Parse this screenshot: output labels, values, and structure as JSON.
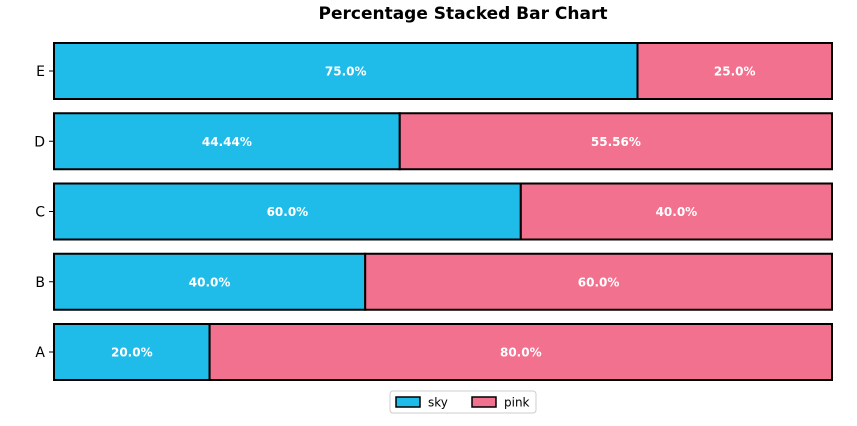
{
  "chart_data": {
    "type": "bar",
    "orientation": "horizontal",
    "stacked": "percent",
    "title": "Percentage Stacked Bar Chart",
    "xlabel": "",
    "ylabel": "",
    "categories": [
      "A",
      "B",
      "C",
      "D",
      "E"
    ],
    "series": [
      {
        "name": "sky",
        "color": "#1fbcea",
        "values": [
          20.0,
          40.0,
          60.0,
          44.44,
          75.0
        ],
        "labels": [
          "20.0%",
          "40.0%",
          "60.0%",
          "44.44%",
          "75.0%"
        ]
      },
      {
        "name": "pink",
        "color": "#f2718e",
        "values": [
          80.0,
          60.0,
          40.0,
          55.56,
          25.0
        ],
        "labels": [
          "80.0%",
          "60.0%",
          "40.0%",
          "55.56%",
          "25.0%"
        ]
      }
    ],
    "xlim": [
      0,
      100
    ],
    "grid": false,
    "legend_position": "bottom-center"
  }
}
